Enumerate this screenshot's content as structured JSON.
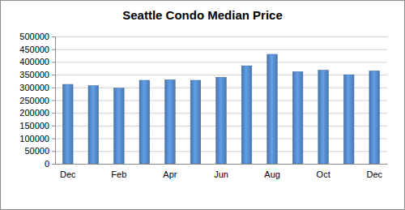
{
  "chart_data": {
    "type": "bar",
    "title": "Seattle Condo Median Price",
    "categories": [
      "Dec",
      null,
      "Feb",
      null,
      "Apr",
      null,
      "Jun",
      null,
      "Aug",
      null,
      "Oct",
      null,
      "Dec"
    ],
    "values": [
      312000,
      307000,
      297000,
      328000,
      330000,
      328000,
      340000,
      385000,
      430000,
      362000,
      368000,
      350000,
      365000
    ],
    "color": "#4f81bd",
    "ylim": [
      0,
      500000
    ],
    "yticks": [
      0,
      50000,
      100000,
      150000,
      200000,
      250000,
      300000,
      350000,
      400000,
      450000,
      500000
    ],
    "grid": true
  }
}
